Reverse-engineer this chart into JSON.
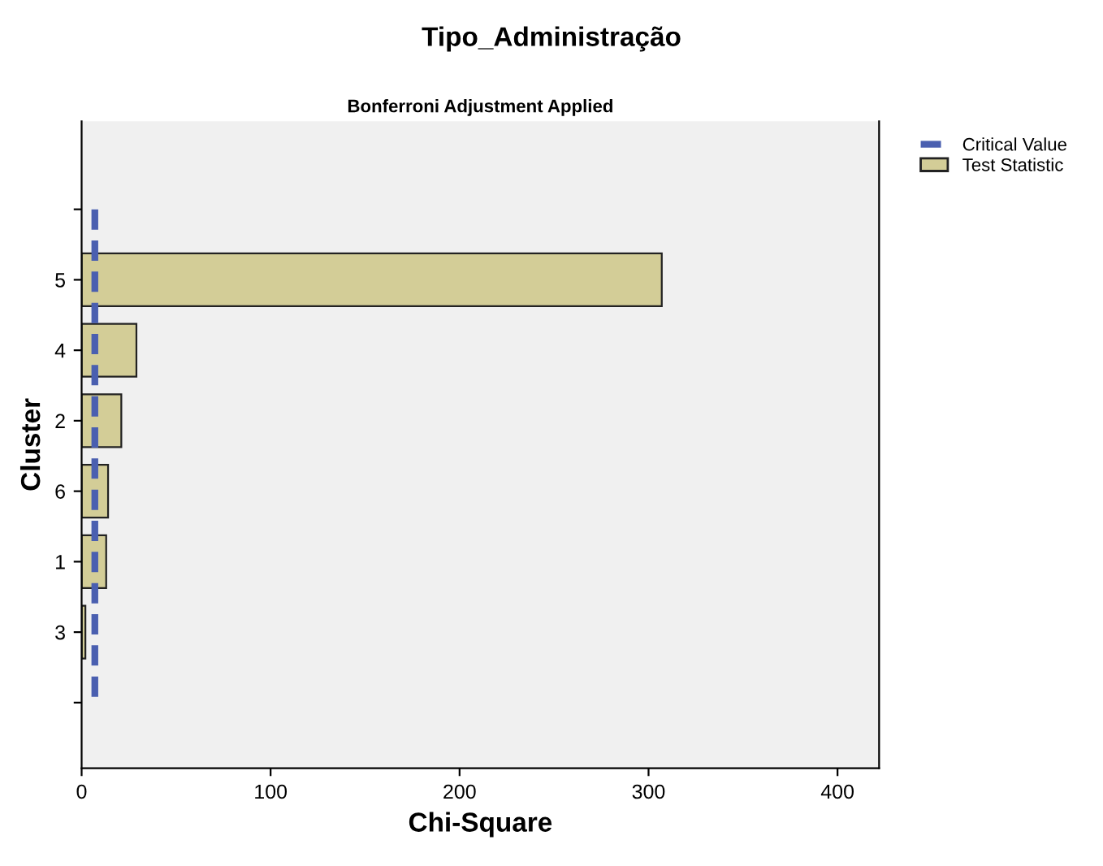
{
  "chart_data": {
    "type": "bar",
    "orientation": "horizontal",
    "title": "Tipo_Administração",
    "subtitle": "Bonferroni Adjustment Applied",
    "xlabel": "Chi-Square",
    "ylabel": "Cluster",
    "categories": [
      null,
      "5",
      "4",
      "2",
      "6",
      "1",
      "3",
      null
    ],
    "series": [
      {
        "name": "Test Statistic",
        "color": "#d3cd97",
        "values": [
          null,
          307,
          29,
          21,
          14,
          13,
          2,
          null
        ]
      }
    ],
    "ref_lines": [
      {
        "axis": "x",
        "value": 7,
        "label": "Critical Value",
        "color": "#4a5fb0",
        "line_style": "dashed"
      }
    ],
    "xlim": [
      0,
      422
    ],
    "xticks": [
      0,
      100,
      200,
      300,
      400
    ],
    "grid": false,
    "legend": "top right"
  }
}
